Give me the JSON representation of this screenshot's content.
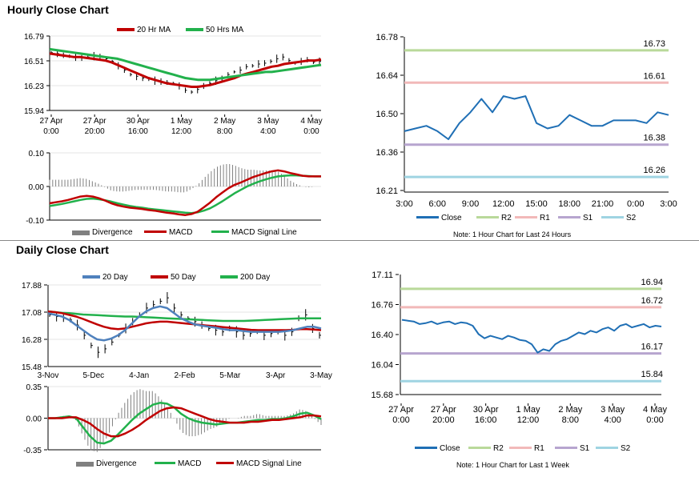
{
  "sections": {
    "hourly_title": "Hourly Close Chart",
    "daily_title": "Daily Close Chart"
  },
  "colors": {
    "close": "#1f6fb5",
    "r2": "#b9d99a",
    "r1": "#f2b9b9",
    "s1": "#b7a5cf",
    "s2": "#9fd4e2",
    "ma_red": "#c00000",
    "ma_green": "#22b14c",
    "ma_blue": "#4f81bd",
    "divergence": "#808080",
    "price": "#000000"
  },
  "chart_data": [
    {
      "id": "hourly_price",
      "type": "line",
      "legend": [
        "20 Hr MA",
        "50 Hrs MA"
      ],
      "ylim": [
        15.94,
        16.79
      ],
      "yticks": [
        "16.79",
        "16.51",
        "16.23",
        "15.94"
      ],
      "xticks": [
        [
          "27 Apr",
          "0:00"
        ],
        [
          "27 Apr",
          "20:00"
        ],
        [
          "30 Apr",
          "16:00"
        ],
        [
          "1 May",
          "12:00"
        ],
        [
          "2 May",
          "8:00"
        ],
        [
          "3 May",
          "4:00"
        ],
        [
          "4 May",
          "0:00"
        ]
      ],
      "close": [
        16.6,
        16.59,
        16.57,
        16.56,
        16.55,
        16.54,
        16.55,
        16.56,
        16.55,
        16.53,
        16.5,
        16.45,
        16.4,
        16.35,
        16.33,
        16.31,
        16.3,
        16.28,
        16.27,
        16.26,
        16.25,
        16.22,
        16.17,
        16.15,
        16.18,
        16.22,
        16.25,
        16.28,
        16.3,
        16.35,
        16.38,
        16.4,
        16.44,
        16.45,
        16.47,
        16.48,
        16.5,
        16.53,
        16.55,
        16.51,
        16.48,
        16.5,
        16.52,
        16.49,
        16.5
      ],
      "series": [
        {
          "name": "20 Hr MA",
          "values": [
            16.59,
            16.58,
            16.57,
            16.56,
            16.55,
            16.55,
            16.54,
            16.53,
            16.52,
            16.51,
            16.49,
            16.46,
            16.43,
            16.4,
            16.37,
            16.34,
            16.31,
            16.29,
            16.27,
            16.25,
            16.24,
            16.23,
            16.22,
            16.21,
            16.21,
            16.22,
            16.23,
            16.25,
            16.27,
            16.29,
            16.31,
            16.34,
            16.36,
            16.38,
            16.4,
            16.42,
            16.44,
            16.45,
            16.47,
            16.48,
            16.49,
            16.5,
            16.51,
            16.51,
            16.52
          ]
        },
        {
          "name": "50 Hrs MA",
          "values": [
            16.64,
            16.63,
            16.62,
            16.61,
            16.6,
            16.59,
            16.58,
            16.57,
            16.56,
            16.55,
            16.54,
            16.53,
            16.51,
            16.49,
            16.47,
            16.45,
            16.43,
            16.41,
            16.39,
            16.37,
            16.35,
            16.33,
            16.31,
            16.3,
            16.29,
            16.29,
            16.29,
            16.3,
            16.31,
            16.32,
            16.33,
            16.34,
            16.35,
            16.36,
            16.37,
            16.38,
            16.38,
            16.39,
            16.4,
            16.41,
            16.42,
            16.43,
            16.44,
            16.45,
            16.46
          ]
        }
      ]
    },
    {
      "id": "hourly_macd",
      "type": "line",
      "legend": [
        "Divergence",
        "MACD",
        "MACD Signal Line"
      ],
      "ylim": [
        -0.1,
        0.1
      ],
      "yticks": [
        "0.10",
        "0.00",
        "-0.10"
      ],
      "series": [
        {
          "name": "MACD",
          "values": [
            -0.05,
            -0.047,
            -0.044,
            -0.04,
            -0.035,
            -0.03,
            -0.028,
            -0.03,
            -0.035,
            -0.042,
            -0.05,
            -0.056,
            -0.06,
            -0.063,
            -0.065,
            -0.067,
            -0.07,
            -0.072,
            -0.075,
            -0.078,
            -0.08,
            -0.083,
            -0.085,
            -0.082,
            -0.075,
            -0.062,
            -0.048,
            -0.032,
            -0.018,
            -0.005,
            0.005,
            0.012,
            0.02,
            0.028,
            0.034,
            0.04,
            0.045,
            0.048,
            0.045,
            0.04,
            0.036,
            0.032,
            0.03,
            0.03,
            0.03
          ]
        },
        {
          "name": "MACD Signal Line",
          "values": [
            -0.058,
            -0.055,
            -0.052,
            -0.048,
            -0.044,
            -0.04,
            -0.037,
            -0.036,
            -0.038,
            -0.041,
            -0.045,
            -0.05,
            -0.054,
            -0.058,
            -0.061,
            -0.063,
            -0.066,
            -0.068,
            -0.07,
            -0.072,
            -0.074,
            -0.076,
            -0.078,
            -0.079,
            -0.077,
            -0.072,
            -0.065,
            -0.055,
            -0.044,
            -0.032,
            -0.02,
            -0.01,
            0.0,
            0.008,
            0.015,
            0.021,
            0.026,
            0.03,
            0.032,
            0.033,
            0.033,
            0.032,
            0.031,
            0.03,
            0.03
          ]
        }
      ]
    },
    {
      "id": "hourly_pivot",
      "type": "line",
      "ylim": [
        16.21,
        16.78
      ],
      "yticks": [
        "16.78",
        "16.64",
        "16.50",
        "16.36",
        "16.21"
      ],
      "xticks": [
        "3:00",
        "6:00",
        "9:00",
        "12:00",
        "15:00",
        "18:00",
        "21:00",
        "0:00",
        "3:00"
      ],
      "levels": [
        {
          "name": "R2",
          "value": 16.73,
          "label": "16.73"
        },
        {
          "name": "R1",
          "value": 16.61,
          "label": "16.61"
        },
        {
          "name": "S1",
          "value": 16.38,
          "label": "16.38"
        },
        {
          "name": "S2",
          "value": 16.26,
          "label": "16.26"
        }
      ],
      "series": [
        {
          "name": "Close",
          "values": [
            16.43,
            16.44,
            16.45,
            16.43,
            16.4,
            16.46,
            16.5,
            16.55,
            16.5,
            16.56,
            16.55,
            16.56,
            16.46,
            16.44,
            16.45,
            16.49,
            16.47,
            16.45,
            16.45,
            16.47,
            16.47,
            16.47,
            16.46,
            16.5,
            16.49
          ]
        }
      ],
      "legend": [
        "Close",
        "R2",
        "R1",
        "S1",
        "S2"
      ],
      "note": "Note: 1 Hour Chart for Last 24 Hours"
    },
    {
      "id": "daily_price",
      "type": "line",
      "legend": [
        "20 Day",
        "50 Day",
        "200 Day"
      ],
      "ylim": [
        15.48,
        17.88
      ],
      "yticks": [
        "17.88",
        "17.08",
        "16.28",
        "15.48"
      ],
      "xticks": [
        "3-Nov",
        "5-Dec",
        "4-Jan",
        "2-Feb",
        "5-Mar",
        "3-Apr",
        "3-May"
      ],
      "close": [
        17.0,
        16.95,
        16.9,
        16.85,
        16.7,
        16.4,
        16.1,
        15.9,
        16.0,
        16.2,
        16.4,
        16.6,
        16.8,
        17.0,
        17.2,
        17.3,
        17.4,
        17.5,
        17.2,
        17.0,
        16.9,
        16.8,
        16.7,
        16.6,
        16.55,
        16.5,
        16.6,
        16.5,
        16.4,
        16.45,
        16.5,
        16.4,
        16.45,
        16.5,
        16.4,
        16.5,
        16.9,
        17.0,
        16.6,
        16.4
      ],
      "series": [
        {
          "name": "20 Day",
          "values": [
            17.05,
            17.0,
            16.95,
            16.85,
            16.7,
            16.55,
            16.4,
            16.28,
            16.25,
            16.3,
            16.4,
            16.55,
            16.75,
            16.95,
            17.1,
            17.2,
            17.25,
            17.2,
            17.05,
            16.9,
            16.8,
            16.72,
            16.68,
            16.65,
            16.62,
            16.58,
            16.55,
            16.55,
            16.52,
            16.5,
            16.5,
            16.5,
            16.5,
            16.5,
            16.52,
            16.55,
            16.6,
            16.65,
            16.65,
            16.6
          ]
        },
        {
          "name": "50 Day",
          "values": [
            17.1,
            17.08,
            17.05,
            17.0,
            16.95,
            16.88,
            16.8,
            16.72,
            16.65,
            16.6,
            16.58,
            16.6,
            16.65,
            16.7,
            16.75,
            16.78,
            16.8,
            16.8,
            16.78,
            16.76,
            16.74,
            16.72,
            16.7,
            16.68,
            16.66,
            16.64,
            16.62,
            16.6,
            16.58,
            16.56,
            16.55,
            16.55,
            16.55,
            16.55,
            16.55,
            16.56,
            16.58,
            16.58,
            16.57,
            16.55
          ]
        },
        {
          "name": "200 Day",
          "values": [
            17.1,
            17.08,
            17.06,
            17.05,
            17.03,
            17.01,
            17.0,
            16.99,
            16.98,
            16.97,
            16.96,
            16.95,
            16.95,
            16.94,
            16.93,
            16.92,
            16.91,
            16.9,
            16.89,
            16.88,
            16.87,
            16.86,
            16.85,
            16.84,
            16.83,
            16.82,
            16.82,
            16.82,
            16.82,
            16.83,
            16.84,
            16.85,
            16.86,
            16.87,
            16.88,
            16.89,
            16.9,
            16.9,
            16.9,
            16.9
          ]
        }
      ]
    },
    {
      "id": "daily_macd",
      "type": "line",
      "legend": [
        "Divergence",
        "MACD",
        "MACD Signal Line"
      ],
      "ylim": [
        -0.35,
        0.35
      ],
      "yticks": [
        "0.35",
        "0.00",
        "-0.35"
      ],
      "series": [
        {
          "name": "MACD",
          "values": [
            0.0,
            0.0,
            0.01,
            0.02,
            0.0,
            -0.1,
            -0.2,
            -0.27,
            -0.28,
            -0.25,
            -0.18,
            -0.1,
            -0.02,
            0.05,
            0.1,
            0.15,
            0.17,
            0.16,
            0.12,
            0.05,
            0.0,
            -0.03,
            -0.05,
            -0.06,
            -0.07,
            -0.06,
            -0.05,
            -0.05,
            -0.04,
            -0.03,
            -0.02,
            -0.02,
            -0.01,
            -0.01,
            0.0,
            0.02,
            0.05,
            0.06,
            0.03,
            -0.01
          ]
        },
        {
          "name": "MACD Signal Line",
          "values": [
            0.0,
            0.0,
            0.0,
            0.01,
            0.01,
            -0.02,
            -0.06,
            -0.12,
            -0.17,
            -0.2,
            -0.2,
            -0.17,
            -0.13,
            -0.08,
            -0.02,
            0.03,
            0.08,
            0.11,
            0.12,
            0.11,
            0.08,
            0.05,
            0.02,
            -0.01,
            -0.03,
            -0.04,
            -0.05,
            -0.05,
            -0.05,
            -0.04,
            -0.04,
            -0.03,
            -0.02,
            -0.02,
            -0.01,
            0.0,
            0.01,
            0.03,
            0.03,
            0.02
          ]
        }
      ]
    },
    {
      "id": "daily_pivot",
      "type": "line",
      "ylim": [
        15.68,
        17.11
      ],
      "yticks": [
        "17.11",
        "16.76",
        "16.40",
        "16.04",
        "15.68"
      ],
      "xticks": [
        [
          "27 Apr",
          "0:00"
        ],
        [
          "27 Apr",
          "20:00"
        ],
        [
          "30 Apr",
          "16:00"
        ],
        [
          "1 May",
          "12:00"
        ],
        [
          "2 May",
          "8:00"
        ],
        [
          "3 May",
          "4:00"
        ],
        [
          "4 May",
          "0:00"
        ]
      ],
      "levels": [
        {
          "name": "R2",
          "value": 16.94,
          "label": "16.94"
        },
        {
          "name": "R1",
          "value": 16.72,
          "label": "16.72"
        },
        {
          "name": "S1",
          "value": 16.17,
          "label": "16.17"
        },
        {
          "name": "S2",
          "value": 15.84,
          "label": "15.84"
        }
      ],
      "series": [
        {
          "name": "Close",
          "values": [
            16.57,
            16.56,
            16.55,
            16.52,
            16.53,
            16.55,
            16.52,
            16.54,
            16.55,
            16.52,
            16.54,
            16.53,
            16.5,
            16.4,
            16.35,
            16.38,
            16.36,
            16.34,
            16.38,
            16.36,
            16.33,
            16.32,
            16.28,
            16.18,
            16.22,
            16.2,
            16.28,
            16.32,
            16.34,
            16.38,
            16.42,
            16.4,
            16.44,
            16.42,
            16.46,
            16.48,
            16.44,
            16.5,
            16.52,
            16.48,
            16.5,
            16.52,
            16.48,
            16.5,
            16.49
          ]
        }
      ],
      "legend": [
        "Close",
        "R2",
        "R1",
        "S1",
        "S2"
      ],
      "note": "Note: 1 Hour Chart for Last 1 Week"
    }
  ]
}
